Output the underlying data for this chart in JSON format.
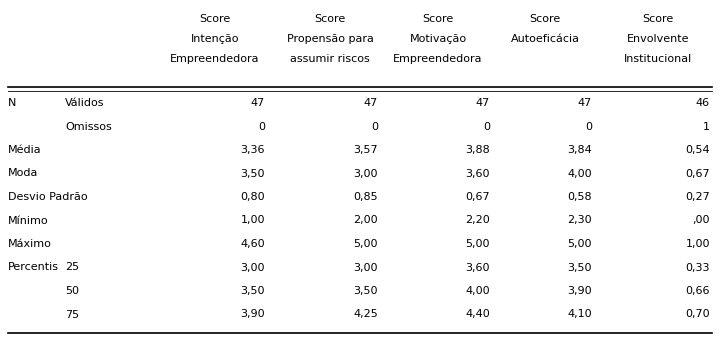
{
  "col_headers": [
    [
      "Score",
      "Intenção",
      "Empreendedora"
    ],
    [
      "Score",
      "Propensão para",
      "assumir riscos"
    ],
    [
      "Score",
      "Motivação",
      "Empreendedora"
    ],
    [
      "Score",
      "Autoeficácia",
      ""
    ],
    [
      "Score",
      "Envolvente",
      "Institucional"
    ]
  ],
  "row_labels_col1": [
    "N",
    "",
    "Média",
    "Moda",
    "Desvio Padrão",
    "Mínimo",
    "Máximo",
    "Percentis",
    "",
    ""
  ],
  "row_labels_col2": [
    "Válidos",
    "Omissos",
    "",
    "",
    "",
    "",
    "",
    "25",
    "50",
    "75"
  ],
  "table_data": [
    [
      "47",
      "47",
      "47",
      "47",
      "46"
    ],
    [
      "0",
      "0",
      "0",
      "0",
      "1"
    ],
    [
      "3,36",
      "3,57",
      "3,88",
      "3,84",
      "0,54"
    ],
    [
      "3,50",
      "3,00",
      "3,60",
      "4,00",
      "0,67"
    ],
    [
      "0,80",
      "0,85",
      "0,67",
      "0,58",
      "0,27"
    ],
    [
      "1,00",
      "2,00",
      "2,20",
      "2,30",
      ",00"
    ],
    [
      "4,60",
      "5,00",
      "5,00",
      "5,00",
      "1,00"
    ],
    [
      "3,00",
      "3,00",
      "3,60",
      "3,50",
      "0,33"
    ],
    [
      "3,50",
      "3,50",
      "4,00",
      "3,90",
      "0,66"
    ],
    [
      "3,90",
      "4,25",
      "4,40",
      "4,10",
      "0,70"
    ]
  ],
  "bg_color": "#ffffff",
  "text_color": "#000000",
  "font_size": 8.0,
  "line_color": "#000000",
  "fig_width": 7.2,
  "fig_height": 3.39,
  "dpi": 100
}
